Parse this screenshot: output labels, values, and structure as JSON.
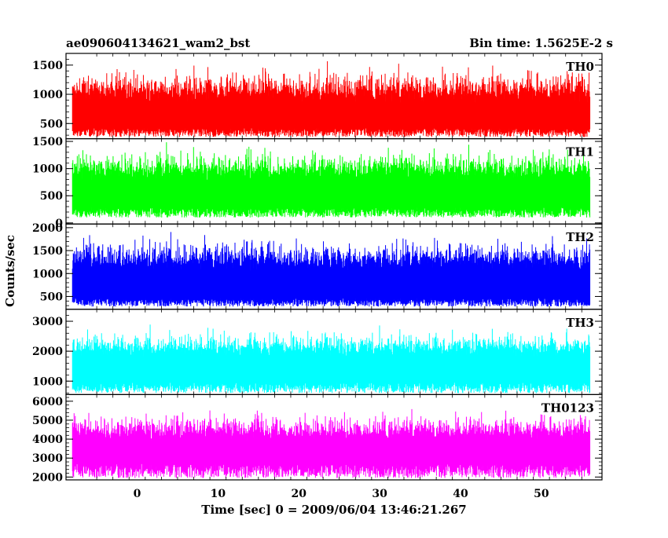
{
  "chart_data": {
    "type": "line",
    "title": "ae090604134621_wam2_bst",
    "subtitle": "Bin time: 1.5625E-2 s",
    "xlabel": "Time [sec] 0 = 2009/06/04 13:46:21.267",
    "ylabel": "Counts/sec",
    "xlim": [
      -8.8,
      57.5
    ],
    "x_ticks": [
      "0",
      "10",
      "20",
      "30",
      "40",
      "50"
    ],
    "x_tick_values": [
      0,
      10,
      20,
      30,
      40,
      50
    ],
    "data_x_range": [
      -8.0,
      56.0
    ],
    "panels": [
      {
        "name": "TH0",
        "color": "#ff0000",
        "ylim": [
          240,
          1700
        ],
        "ticks": [
          500,
          1000,
          1500
        ],
        "tick_labels": [
          "500",
          "1000",
          "1500"
        ],
        "base": [
          270,
          420
        ],
        "mean": 850,
        "sd": 300,
        "max": 1700
      },
      {
        "name": "TH1",
        "color": "#00ff00",
        "ylim": [
          -20,
          1550
        ],
        "ticks": [
          0,
          500,
          1000,
          1500
        ],
        "tick_labels": [
          "0",
          "500",
          "1000",
          "1500"
        ],
        "base": [
          100,
          280
        ],
        "mean": 780,
        "sd": 290,
        "max": 1550
      },
      {
        "name": "TH2",
        "color": "#0000ff",
        "ylim": [
          220,
          2080
        ],
        "ticks": [
          500,
          1000,
          1500,
          2000
        ],
        "tick_labels": [
          "500",
          "1000",
          "1500",
          "2000"
        ],
        "base": [
          280,
          460
        ],
        "mean": 1050,
        "sd": 360,
        "max": 2080
      },
      {
        "name": "TH3",
        "color": "#00ffff",
        "ylim": [
          550,
          3400
        ],
        "ticks": [
          1000,
          2000,
          3000
        ],
        "tick_labels": [
          "1000",
          "2000",
          "3000"
        ],
        "base": [
          600,
          950
        ],
        "mean": 1800,
        "sd": 440,
        "max": 3400
      },
      {
        "name": "TH0123",
        "color": "#ff00ff",
        "ylim": [
          1850,
          6350
        ],
        "ticks": [
          2000,
          3000,
          4000,
          5000,
          6000
        ],
        "tick_labels": [
          "2000",
          "3000",
          "4000",
          "5000",
          "6000"
        ],
        "base": [
          1950,
          2700
        ],
        "mean": 3900,
        "sd": 750,
        "max": 6350
      }
    ],
    "grid": false,
    "legend": "none"
  }
}
